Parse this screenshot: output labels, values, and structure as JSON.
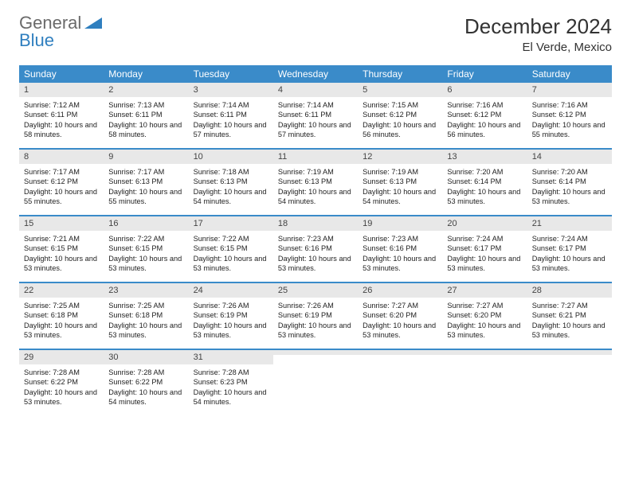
{
  "brand": {
    "part1": "General",
    "part2": "Blue"
  },
  "header": {
    "month_title": "December 2024",
    "location": "El Verde, Mexico"
  },
  "colors": {
    "header_bar": "#3a8bc9",
    "daynum_bg": "#e8e8e8",
    "week_divider": "#3a8bc9",
    "text": "#222222",
    "logo_gray": "#6a6a6a",
    "logo_blue": "#2f7fbf",
    "page_bg": "#ffffff"
  },
  "calendar": {
    "dow_labels": [
      "Sunday",
      "Monday",
      "Tuesday",
      "Wednesday",
      "Thursday",
      "Friday",
      "Saturday"
    ],
    "weeks": [
      [
        {
          "n": "1",
          "sr": "7:12 AM",
          "ss": "6:11 PM",
          "dl": "10 hours and 58 minutes."
        },
        {
          "n": "2",
          "sr": "7:13 AM",
          "ss": "6:11 PM",
          "dl": "10 hours and 58 minutes."
        },
        {
          "n": "3",
          "sr": "7:14 AM",
          "ss": "6:11 PM",
          "dl": "10 hours and 57 minutes."
        },
        {
          "n": "4",
          "sr": "7:14 AM",
          "ss": "6:11 PM",
          "dl": "10 hours and 57 minutes."
        },
        {
          "n": "5",
          "sr": "7:15 AM",
          "ss": "6:12 PM",
          "dl": "10 hours and 56 minutes."
        },
        {
          "n": "6",
          "sr": "7:16 AM",
          "ss": "6:12 PM",
          "dl": "10 hours and 56 minutes."
        },
        {
          "n": "7",
          "sr": "7:16 AM",
          "ss": "6:12 PM",
          "dl": "10 hours and 55 minutes."
        }
      ],
      [
        {
          "n": "8",
          "sr": "7:17 AM",
          "ss": "6:12 PM",
          "dl": "10 hours and 55 minutes."
        },
        {
          "n": "9",
          "sr": "7:17 AM",
          "ss": "6:13 PM",
          "dl": "10 hours and 55 minutes."
        },
        {
          "n": "10",
          "sr": "7:18 AM",
          "ss": "6:13 PM",
          "dl": "10 hours and 54 minutes."
        },
        {
          "n": "11",
          "sr": "7:19 AM",
          "ss": "6:13 PM",
          "dl": "10 hours and 54 minutes."
        },
        {
          "n": "12",
          "sr": "7:19 AM",
          "ss": "6:13 PM",
          "dl": "10 hours and 54 minutes."
        },
        {
          "n": "13",
          "sr": "7:20 AM",
          "ss": "6:14 PM",
          "dl": "10 hours and 53 minutes."
        },
        {
          "n": "14",
          "sr": "7:20 AM",
          "ss": "6:14 PM",
          "dl": "10 hours and 53 minutes."
        }
      ],
      [
        {
          "n": "15",
          "sr": "7:21 AM",
          "ss": "6:15 PM",
          "dl": "10 hours and 53 minutes."
        },
        {
          "n": "16",
          "sr": "7:22 AM",
          "ss": "6:15 PM",
          "dl": "10 hours and 53 minutes."
        },
        {
          "n": "17",
          "sr": "7:22 AM",
          "ss": "6:15 PM",
          "dl": "10 hours and 53 minutes."
        },
        {
          "n": "18",
          "sr": "7:23 AM",
          "ss": "6:16 PM",
          "dl": "10 hours and 53 minutes."
        },
        {
          "n": "19",
          "sr": "7:23 AM",
          "ss": "6:16 PM",
          "dl": "10 hours and 53 minutes."
        },
        {
          "n": "20",
          "sr": "7:24 AM",
          "ss": "6:17 PM",
          "dl": "10 hours and 53 minutes."
        },
        {
          "n": "21",
          "sr": "7:24 AM",
          "ss": "6:17 PM",
          "dl": "10 hours and 53 minutes."
        }
      ],
      [
        {
          "n": "22",
          "sr": "7:25 AM",
          "ss": "6:18 PM",
          "dl": "10 hours and 53 minutes."
        },
        {
          "n": "23",
          "sr": "7:25 AM",
          "ss": "6:18 PM",
          "dl": "10 hours and 53 minutes."
        },
        {
          "n": "24",
          "sr": "7:26 AM",
          "ss": "6:19 PM",
          "dl": "10 hours and 53 minutes."
        },
        {
          "n": "25",
          "sr": "7:26 AM",
          "ss": "6:19 PM",
          "dl": "10 hours and 53 minutes."
        },
        {
          "n": "26",
          "sr": "7:27 AM",
          "ss": "6:20 PM",
          "dl": "10 hours and 53 minutes."
        },
        {
          "n": "27",
          "sr": "7:27 AM",
          "ss": "6:20 PM",
          "dl": "10 hours and 53 minutes."
        },
        {
          "n": "28",
          "sr": "7:27 AM",
          "ss": "6:21 PM",
          "dl": "10 hours and 53 minutes."
        }
      ],
      [
        {
          "n": "29",
          "sr": "7:28 AM",
          "ss": "6:22 PM",
          "dl": "10 hours and 53 minutes."
        },
        {
          "n": "30",
          "sr": "7:28 AM",
          "ss": "6:22 PM",
          "dl": "10 hours and 54 minutes."
        },
        {
          "n": "31",
          "sr": "7:28 AM",
          "ss": "6:23 PM",
          "dl": "10 hours and 54 minutes."
        },
        null,
        null,
        null,
        null
      ]
    ],
    "labels": {
      "sunrise": "Sunrise:",
      "sunset": "Sunset:",
      "daylight": "Daylight:"
    }
  }
}
